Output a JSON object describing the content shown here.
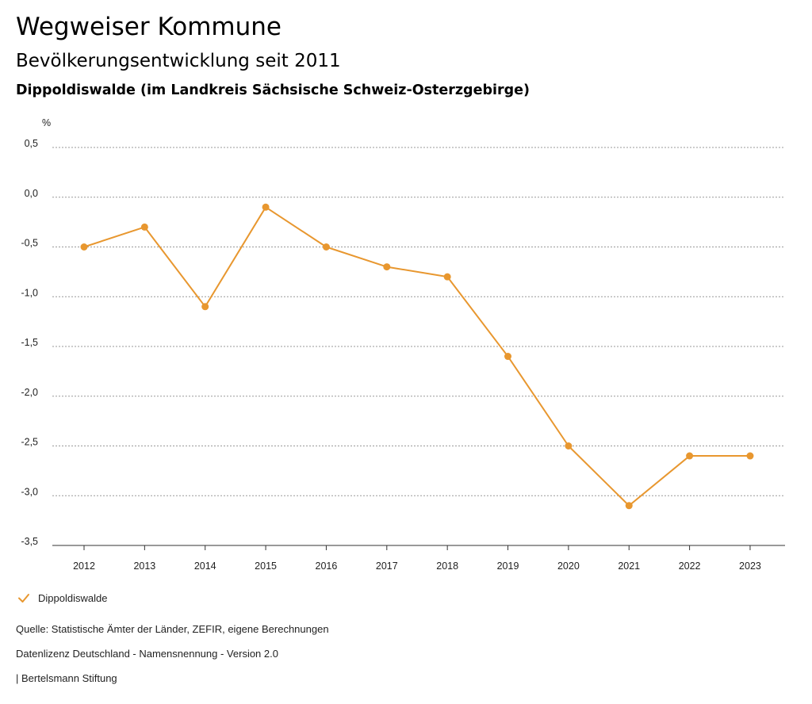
{
  "header": {
    "title": "Wegweiser Kommune",
    "subtitle": "Bevölkerungsentwicklung seit 2011",
    "region": "Dippoldiswalde (im Landkreis Sächsische Schweiz-Osterzgebirge)"
  },
  "chart_data": {
    "type": "line",
    "unit": "%",
    "x": [
      "2012",
      "2013",
      "2014",
      "2015",
      "2016",
      "2017",
      "2018",
      "2019",
      "2020",
      "2021",
      "2022",
      "2023"
    ],
    "series": [
      {
        "name": "Dippoldiswalde",
        "values": [
          -0.5,
          -0.3,
          -1.1,
          -0.1,
          -0.5,
          -0.7,
          -0.8,
          -1.6,
          -2.5,
          -3.1,
          -2.6,
          -2.6
        ]
      }
    ],
    "yticks": [
      0.5,
      0.0,
      -0.5,
      -1.0,
      -1.5,
      -2.0,
      -2.5,
      -3.0,
      -3.5
    ],
    "ytick_labels": [
      "0,5",
      "0,0",
      "-0,5",
      "-1,0",
      "-1,5",
      "-2,0",
      "-2,5",
      "-3,0",
      "-3,5"
    ],
    "ylim": [
      -3.5,
      0.5
    ],
    "grid": true,
    "legend_position": "bottom-left",
    "color": "#e8972f"
  },
  "legend": {
    "label": "Dippoldiswalde"
  },
  "footer": {
    "source": "Quelle: Statistische Ämter der Länder, ZEFIR, eigene Berechnungen",
    "license": "Datenlizenz Deutschland - Namensnennung - Version 2.0",
    "publisher": "| Bertelsmann Stiftung"
  }
}
